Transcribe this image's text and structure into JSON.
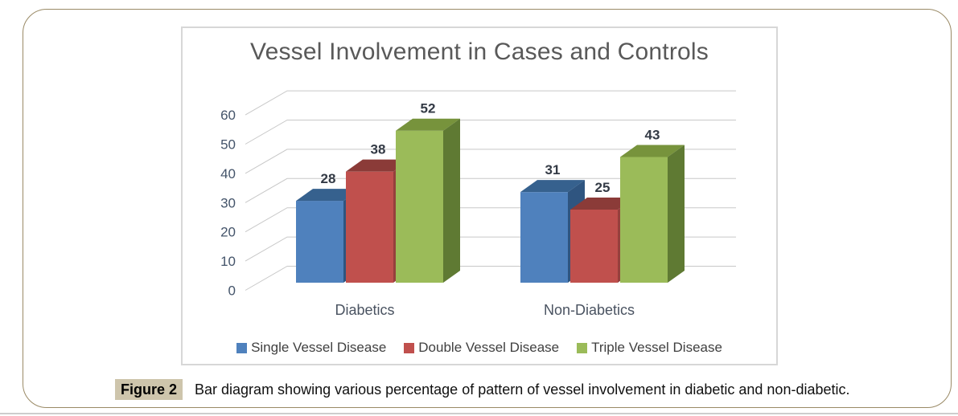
{
  "figure": {
    "label": "Figure 2",
    "caption": "Bar diagram showing various percentage of pattern of vessel involvement in diabetic and non-diabetic."
  },
  "chart_data": {
    "type": "bar",
    "style": "3d-clustered",
    "title": "Vessel Involvement in Cases and Controls",
    "categories": [
      "Diabetics",
      "Non-Diabetics"
    ],
    "series": [
      {
        "name": "Single Vessel Disease",
        "values": [
          28,
          31
        ],
        "color": "#4F81BD",
        "top_color": "#36618E",
        "side_color": "#2F5580"
      },
      {
        "name": "Double Vessel Disease",
        "values": [
          38,
          25
        ],
        "color": "#C0504D",
        "top_color": "#8B3B38",
        "side_color": "#96403D"
      },
      {
        "name": "Triple Vessel Disease",
        "values": [
          52,
          43
        ],
        "color": "#9BBB59",
        "top_color": "#77933C",
        "side_color": "#5F7A33"
      }
    ],
    "xlabel": "",
    "ylabel": "",
    "ylim": [
      0,
      60
    ],
    "yticks": [
      0,
      10,
      20,
      30,
      40,
      50,
      60
    ],
    "grid": true,
    "gridline_color": "#C8C8C8",
    "legend_position": "bottom",
    "data_labels": true
  },
  "frame": {
    "border_color": "#9A8A66",
    "chart_border_color": "#D7D7D7",
    "caption_label_bg": "#CEC5AC"
  }
}
